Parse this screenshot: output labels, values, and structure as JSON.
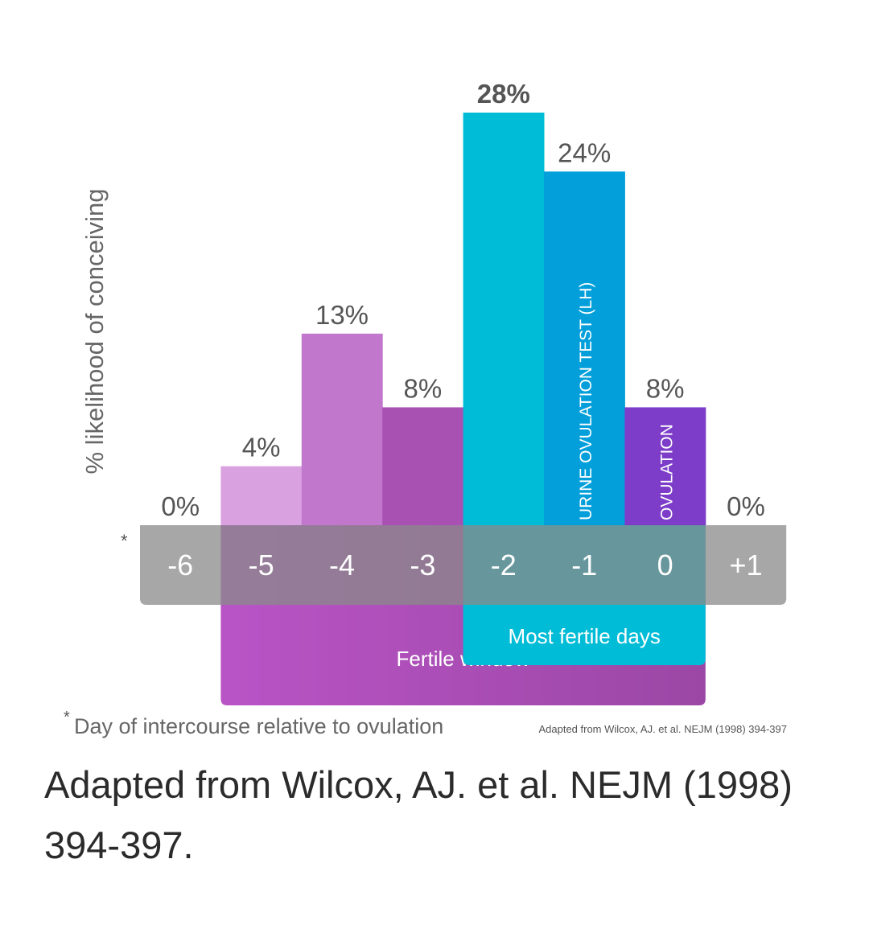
{
  "chart_data": {
    "type": "bar",
    "title": "",
    "ylabel": "% likelihood of conceiving",
    "xlabel": "Day of intercourse relative to ovulation",
    "xlabel_marker": "*",
    "ylim": [
      0,
      28
    ],
    "categories": [
      "-6",
      "-5",
      "-4",
      "-3",
      "-2",
      "-1",
      "0",
      "+1"
    ],
    "values": [
      0,
      4,
      13,
      8,
      28,
      24,
      8,
      0
    ],
    "value_labels": [
      "0%",
      "4%",
      "13%",
      "8%",
      "28%",
      "24%",
      "8%",
      "0%"
    ],
    "bar_colors": [
      "#ffffff",
      "#d9a1e0",
      "#c077cc",
      "#a851b3",
      "#00bcd6",
      "#029fdb",
      "#7d3dc8",
      "#ffffff"
    ],
    "bar_annotations": {
      "5": "URINE OVULATION TEST (LH)",
      "6": "OVULATION"
    },
    "highlight_index": 4,
    "ranges": [
      {
        "label": "Fertile window",
        "from": "-5",
        "to": "0",
        "color": "#b151c0"
      },
      {
        "label": "Most fertile days",
        "from": "-2",
        "to": "0",
        "color": "#00bcd6"
      }
    ],
    "source_small": "Adapted from Wilcox, AJ. et al. NEJM (1998) 394-397"
  },
  "caption": "Adapted from Wilcox, AJ. et al. NEJM (1998) 394-397."
}
